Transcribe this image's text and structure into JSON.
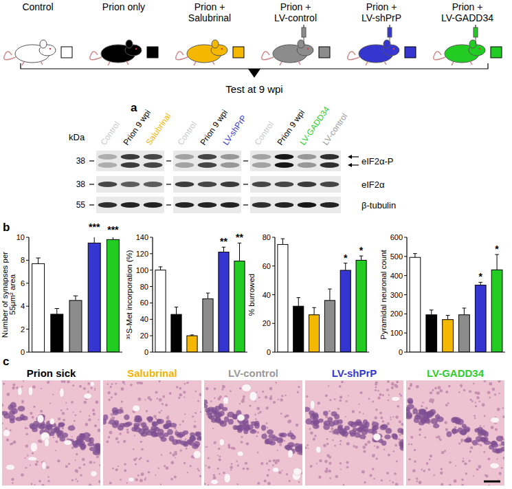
{
  "header": {
    "groups": [
      {
        "label": [
          "Control"
        ],
        "color": "#ffffff",
        "syringe": false
      },
      {
        "label": [
          "Prion only"
        ],
        "color": "#000000",
        "syringe": false
      },
      {
        "label": [
          "Prion +",
          "Salubrinal"
        ],
        "color": "#f5b800",
        "syringe": false
      },
      {
        "label": [
          "Prion +",
          "LV-control"
        ],
        "color": "#8c8c8c",
        "syringe": true
      },
      {
        "label": [
          "Prion +",
          "LV-shPrP"
        ],
        "color": "#3535d0",
        "syringe": true
      },
      {
        "label": [
          "Prion +",
          "LV-GADD34"
        ],
        "color": "#22cc22",
        "syringe": true
      }
    ],
    "test_label": "Test at 9 wpi"
  },
  "blot": {
    "panel_label": "a",
    "unit": "kDa",
    "markers": [
      38,
      38,
      55
    ],
    "rows": [
      "eIF2α-P",
      "eIF2α",
      "β-tubulin"
    ],
    "panels": [
      {
        "lanes": [
          {
            "label": "Control",
            "color": "#c8c8c8",
            "bands": [
              0.25,
              0.7,
              0.8
            ]
          },
          {
            "label": "Prion 9 wpi",
            "color": "#000000",
            "bands": [
              0.75,
              0.6,
              0.85
            ]
          },
          {
            "label": "Salubrinal",
            "color": "#f0b400",
            "bands": [
              0.7,
              0.6,
              0.85
            ]
          }
        ]
      },
      {
        "lanes": [
          {
            "label": "Control",
            "color": "#c8c8c8",
            "bands": [
              0.3,
              0.75,
              0.85
            ]
          },
          {
            "label": "Prion 9 wpi",
            "color": "#000000",
            "bands": [
              0.7,
              0.7,
              0.85
            ]
          },
          {
            "label": "LV-shPrP",
            "color": "#3535d0",
            "bands": [
              0.35,
              0.75,
              0.85
            ]
          }
        ]
      },
      {
        "lanes": [
          {
            "label": "Control",
            "color": "#c8c8c8",
            "bands": [
              0.3,
              0.7,
              0.8
            ]
          },
          {
            "label": "Prion 9 wpi",
            "color": "#000000",
            "bands": [
              0.9,
              0.7,
              0.85
            ]
          },
          {
            "label": "LV-GADD34",
            "color": "#2ecc2e",
            "bands": [
              0.35,
              0.75,
              0.9
            ]
          },
          {
            "label": "LV-control",
            "color": "#999999",
            "bands": [
              0.8,
              0.7,
              0.85
            ]
          }
        ]
      }
    ]
  },
  "bars_panel_label": "b",
  "chart_data": [
    {
      "type": "bar",
      "y_label": [
        "Number of synapses per",
        "55μm² area"
      ],
      "categories": [
        null,
        null,
        null,
        null,
        null
      ],
      "values": [
        7.7,
        3.3,
        4.5,
        9.5,
        9.8
      ],
      "errors": [
        0.5,
        0.5,
        0.4,
        0.9,
        0.4
      ],
      "significance": [
        null,
        null,
        null,
        "***",
        "***"
      ],
      "colors": [
        "#ffffff",
        "#000000",
        "#8c8c8c",
        "#3535d0",
        "#22cc22"
      ],
      "ylim": [
        0,
        10
      ],
      "yticks": [
        0,
        2,
        4,
        6,
        8,
        10
      ],
      "tick_labels": "y",
      "grid": false
    },
    {
      "type": "bar",
      "y_label": "³⁵S-Met incorporation (%)",
      "categories": [
        null,
        null,
        null,
        null,
        null,
        null
      ],
      "values": [
        100,
        46,
        20,
        65,
        122,
        111
      ],
      "errors": [
        4,
        9,
        1,
        7,
        6,
        22
      ],
      "significance": [
        null,
        null,
        null,
        null,
        "**",
        "**"
      ],
      "colors": [
        "#ffffff",
        "#000000",
        "#f5b800",
        "#8c8c8c",
        "#3535d0",
        "#22cc22"
      ],
      "ylim": [
        0,
        140
      ],
      "yticks": [
        0,
        20,
        40,
        60,
        80,
        100,
        120,
        140
      ],
      "tick_labels": "y",
      "grid": false
    },
    {
      "type": "bar",
      "y_label": "% burrowed",
      "categories": [
        null,
        null,
        null,
        null,
        null,
        null
      ],
      "values": [
        75,
        32,
        26,
        36,
        57,
        64
      ],
      "errors": [
        4,
        6,
        5,
        8,
        5,
        3
      ],
      "significance": [
        null,
        null,
        null,
        null,
        "*",
        "*"
      ],
      "colors": [
        "#ffffff",
        "#000000",
        "#f5b800",
        "#8c8c8c",
        "#3535d0",
        "#22cc22"
      ],
      "ylim": [
        0,
        80
      ],
      "yticks": [
        0,
        20,
        40,
        60,
        80
      ],
      "tick_labels": "y",
      "grid": false
    },
    {
      "type": "bar",
      "y_label": "Pyramidal neuronal count",
      "categories": [
        null,
        null,
        null,
        null,
        null,
        null
      ],
      "values": [
        495,
        195,
        170,
        195,
        350,
        430
      ],
      "errors": [
        20,
        25,
        22,
        35,
        15,
        80
      ],
      "significance": [
        null,
        null,
        null,
        null,
        "*",
        "*"
      ],
      "colors": [
        "#ffffff",
        "#000000",
        "#f5b800",
        "#8c8c8c",
        "#3535d0",
        "#22cc22"
      ],
      "ylim": [
        0,
        600
      ],
      "yticks": [
        0,
        100,
        200,
        300,
        400,
        500,
        600
      ],
      "tick_labels": "y",
      "grid": false
    }
  ],
  "histology": {
    "panel_label": "c",
    "images": [
      {
        "title": "Prion sick",
        "color": "#000000",
        "vacuoles": 16
      },
      {
        "title": "Salubrinal",
        "color": "#f0b400",
        "vacuoles": 3
      },
      {
        "title": "LV-control",
        "color": "#999999",
        "vacuoles": 12
      },
      {
        "title": "LV-shPrP",
        "color": "#3535d0",
        "vacuoles": 4
      },
      {
        "title": "LV-GADD34",
        "color": "#2ecc2e",
        "vacuoles": 2
      }
    ]
  }
}
